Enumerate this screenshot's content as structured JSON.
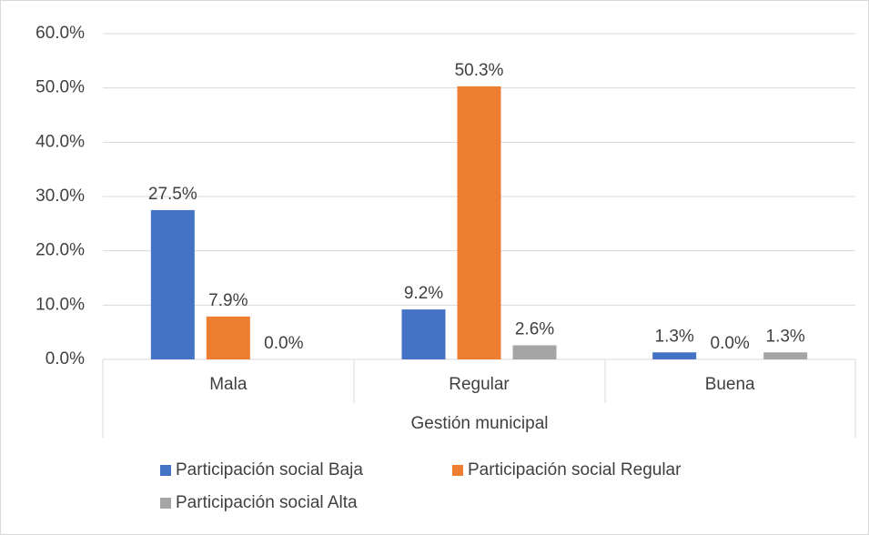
{
  "chart_data": {
    "type": "bar",
    "x_label": "Gestión municipal",
    "categories": [
      "Mala",
      "Regular",
      "Buena"
    ],
    "series": [
      {
        "name": "Participación social Baja",
        "color": "#4472c4",
        "values": [
          27.5,
          9.2,
          1.3
        ],
        "value_labels": [
          "27.5%",
          "9.2%",
          "1.3%"
        ]
      },
      {
        "name": "Participación social Regular",
        "color": "#ed7d31",
        "values": [
          7.9,
          50.3,
          0.0
        ],
        "value_labels": [
          "7.9%",
          "50.3%",
          "0.0%"
        ]
      },
      {
        "name": "Participación social Alta",
        "color": "#a5a5a5",
        "values": [
          0.0,
          2.6,
          1.3
        ],
        "value_labels": [
          "0.0%",
          "2.6%",
          "1.3%"
        ]
      }
    ],
    "ylim": [
      0,
      60
    ],
    "yticks": [
      {
        "value": 0,
        "label": "0.0%"
      },
      {
        "value": 10,
        "label": "10.0%"
      },
      {
        "value": 20,
        "label": "20.0%"
      },
      {
        "value": 30,
        "label": "30.0%"
      },
      {
        "value": 40,
        "label": "40.0%"
      },
      {
        "value": 50,
        "label": "50.0%"
      },
      {
        "value": 60,
        "label": "60.0%"
      }
    ],
    "grid": true
  }
}
